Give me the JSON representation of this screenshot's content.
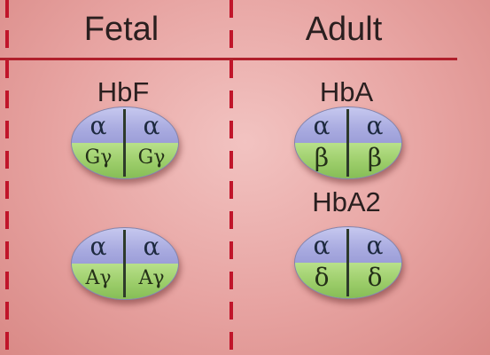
{
  "headers": {
    "fetal": "Fetal",
    "adult": "Adult"
  },
  "labels": {
    "hbf": "HbF",
    "hba": "HbA",
    "hba2": "HbA2"
  },
  "molecules": {
    "hbf_g": {
      "top_left": "α",
      "top_right": "α",
      "bottom_left": "Gγ",
      "bottom_right": "Gγ"
    },
    "hbf_a": {
      "top_left": "α",
      "top_right": "α",
      "bottom_left": "Aγ",
      "bottom_right": "Aγ"
    },
    "hba": {
      "top_left": "α",
      "top_right": "α",
      "bottom_left": "β",
      "bottom_right": "β"
    },
    "hba2": {
      "top_left": "α",
      "top_right": "α",
      "bottom_left": "δ",
      "bottom_right": "δ"
    }
  },
  "colors": {
    "background": "#e7a3a1",
    "line": "#b01f2b",
    "alpha_subunit": "#a9abe0",
    "non_alpha_subunit": "#9ccd6a"
  }
}
